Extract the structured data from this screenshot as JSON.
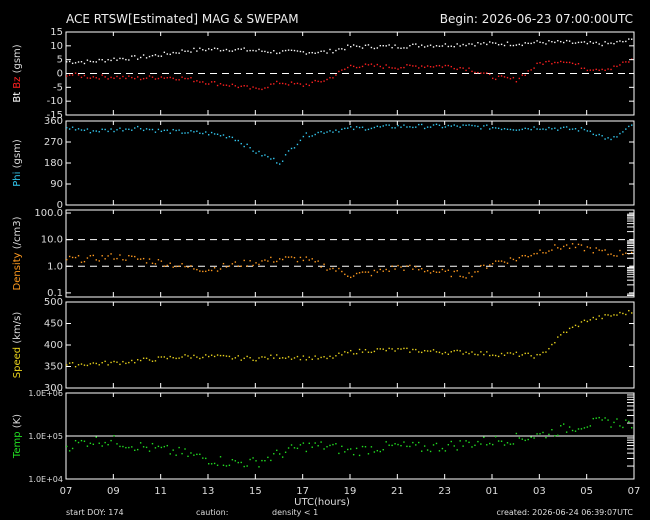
{
  "header": {
    "title": "ACE RTSW[Estimated] MAG & SWEPAM",
    "begin": "Begin: 2026-06-23 07:00:00UTC"
  },
  "footer": {
    "start_doy": "start DOY: 174",
    "caution_label": "caution:",
    "caution_value": "density < 1",
    "created": "created: 2026-06-24 06:39:07UTC"
  },
  "colors": {
    "background": "#000000",
    "frame": "#ffffff",
    "bt": "#ffffff",
    "bz": "#ff2020",
    "phi": "#33c8f0",
    "density": "#ff9a1f",
    "speed": "#e8d21c",
    "temp": "#22e022",
    "caution": "#ff9a1f"
  },
  "chart_data": [
    {
      "type": "scatter",
      "panel": "mag",
      "ylabel_parts": [
        "Bt",
        "Bz",
        "(gsm)"
      ],
      "ylim": [
        -15,
        15
      ],
      "yticks": [
        15,
        10,
        5,
        0,
        -5,
        -10,
        -15
      ],
      "reference_lines": [
        {
          "y": 0,
          "style": "dashed"
        }
      ],
      "series": [
        {
          "name": "Bt",
          "x": [
            0,
            1,
            2,
            3,
            4,
            5,
            6,
            7,
            8,
            9,
            10,
            11,
            12,
            13,
            14,
            15,
            16,
            17,
            18,
            19,
            20,
            21,
            22,
            23,
            24
          ],
          "values": [
            4.5,
            4.5,
            5.5,
            6,
            7,
            8.5,
            9,
            9,
            8.5,
            8,
            8,
            8,
            10,
            10,
            10,
            10.5,
            10.5,
            11,
            11,
            11,
            11.5,
            11.5,
            11,
            11,
            12.5
          ]
        },
        {
          "name": "Bz",
          "x": [
            0,
            1,
            2,
            3,
            4,
            5,
            6,
            7,
            8,
            9,
            10,
            11,
            12,
            13,
            14,
            15,
            16,
            17,
            18,
            19,
            20,
            21,
            22,
            23,
            24
          ],
          "values": [
            0,
            -1,
            -1,
            -1.5,
            -1,
            -1.5,
            -3,
            -4,
            -5.5,
            -3,
            -4,
            -2,
            3,
            3,
            2.5,
            3,
            3,
            2,
            -1,
            -2,
            4,
            5,
            2,
            2,
            5.5
          ]
        }
      ]
    },
    {
      "type": "scatter",
      "panel": "phi",
      "ylabel_parts": [
        "Phi",
        "(gsm)"
      ],
      "ylim": [
        0,
        360
      ],
      "yticks": [
        360,
        270,
        180,
        90,
        0
      ],
      "series": [
        {
          "name": "Phi",
          "x": [
            0,
            1,
            2,
            3,
            4,
            5,
            6,
            7,
            8,
            9,
            10,
            11,
            12,
            13,
            14,
            15,
            16,
            17,
            18,
            19,
            20,
            21,
            22,
            23,
            24
          ],
          "values": [
            335,
            320,
            325,
            335,
            320,
            315,
            310,
            295,
            230,
            185,
            300,
            320,
            330,
            335,
            340,
            340,
            340,
            340,
            335,
            330,
            335,
            330,
            325,
            280,
            350
          ]
        }
      ]
    },
    {
      "type": "scatter",
      "panel": "density",
      "scale": "log",
      "ylabel_parts": [
        "Density",
        "(/cm3)"
      ],
      "ylim": [
        0.07,
        130
      ],
      "yticks": [
        100.0,
        10.0,
        1.0,
        0.1
      ],
      "ytick_labels": [
        "100.0",
        "10.0",
        "1.0",
        "0.1"
      ],
      "reference_lines": [
        {
          "y": 10,
          "style": "dashed"
        },
        {
          "y": 1,
          "style": "dashed"
        }
      ],
      "series": [
        {
          "name": "Density",
          "x": [
            0,
            1,
            2,
            3,
            4,
            5,
            6,
            7,
            8,
            9,
            10,
            11,
            12,
            13,
            14,
            15,
            16,
            17,
            18,
            19,
            20,
            21,
            22,
            23,
            24
          ],
          "values": [
            2,
            2,
            2.5,
            2,
            1.5,
            1,
            0.8,
            1.2,
            1.5,
            2,
            2,
            1,
            0.5,
            0.6,
            1,
            0.8,
            0.6,
            0.5,
            1.5,
            2,
            4,
            6,
            5,
            3,
            4
          ]
        }
      ]
    },
    {
      "type": "scatter",
      "panel": "speed",
      "ylabel_parts": [
        "Speed",
        "(km/s)"
      ],
      "ylim": [
        300,
        500
      ],
      "yticks": [
        500,
        450,
        400,
        350,
        300
      ],
      "series": [
        {
          "name": "Speed",
          "x": [
            0,
            1,
            2,
            3,
            4,
            5,
            6,
            7,
            8,
            9,
            10,
            11,
            12,
            13,
            14,
            15,
            16,
            17,
            18,
            19,
            20,
            21,
            22,
            23,
            24
          ],
          "values": [
            355,
            358,
            360,
            365,
            370,
            375,
            375,
            372,
            370,
            375,
            372,
            370,
            385,
            390,
            390,
            388,
            385,
            385,
            380,
            380,
            375,
            430,
            460,
            470,
            480
          ]
        }
      ]
    },
    {
      "type": "scatter",
      "panel": "temp",
      "scale": "log",
      "ylabel_parts": [
        "Temp",
        "(K)"
      ],
      "ylim": [
        10000,
        1000000
      ],
      "yticks": [
        1000000,
        100000,
        10000
      ],
      "ytick_labels": [
        "1.0E+06",
        "1.0E+05",
        "1.0E+04"
      ],
      "reference_lines": [
        {
          "y": 100000,
          "style": "solid"
        }
      ],
      "series": [
        {
          "name": "Temp",
          "x": [
            0,
            1,
            2,
            3,
            4,
            5,
            6,
            7,
            8,
            9,
            10,
            11,
            12,
            13,
            14,
            15,
            16,
            17,
            18,
            19,
            20,
            21,
            22,
            23,
            24
          ],
          "values": [
            60000,
            80000,
            80000,
            60000,
            50000,
            40000,
            30000,
            25000,
            25000,
            40000,
            60000,
            60000,
            45000,
            55000,
            60000,
            55000,
            60000,
            70000,
            80000,
            90000,
            110000,
            150000,
            200000,
            220000,
            200000
          ]
        }
      ]
    }
  ],
  "x_axis": {
    "range": [
      0,
      24
    ],
    "tick_labels": [
      "07",
      "09",
      "11",
      "13",
      "15",
      "17",
      "19",
      "21",
      "23",
      "01",
      "03",
      "05",
      "07"
    ],
    "label": "UTC(hours)"
  }
}
